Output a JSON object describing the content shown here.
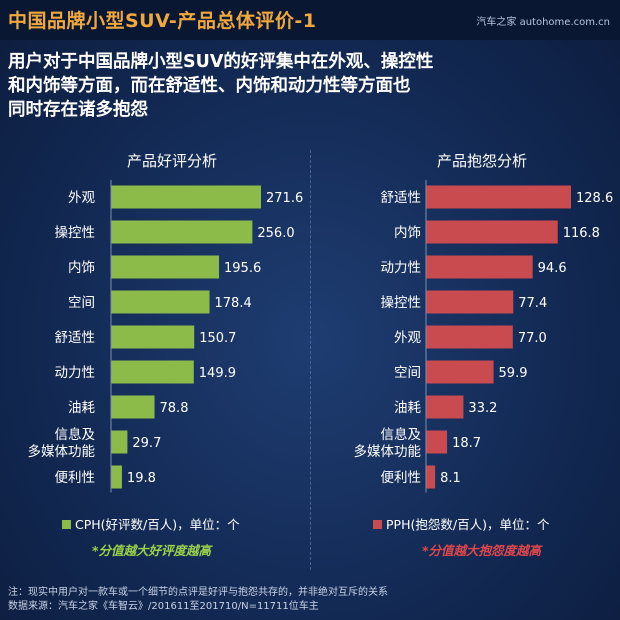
{
  "header": {
    "title": "中国品牌小型SUV-产品总体评价-1",
    "watermark": "汽车之家 autohome.com.cn"
  },
  "subtitle_lines": [
    "用户对于中国品牌小型SUV的好评集中在外观、操控性",
    "和内饰等方面，而在舒适性、内饰和动力性等方面也",
    "同时存在诸多抱怨"
  ],
  "colors": {
    "title": "#f0a83c",
    "good": "#8dbb4a",
    "bad": "#c94a4f",
    "good_note": "#9bd14a",
    "bad_note": "#e0474c"
  },
  "chart_data": [
    {
      "type": "bar",
      "orientation": "horizontal",
      "title": "产品好评分析",
      "categories": [
        "外观",
        "操控性",
        "内饰",
        "空间",
        "舒适性",
        "动力性",
        "油耗",
        "信息及\n多媒体功能",
        "便利性"
      ],
      "series": [
        {
          "name": "CPH(好评数/百人)，单位：个",
          "values": [
            271.6,
            256.0,
            195.6,
            178.4,
            150.7,
            149.9,
            78.8,
            29.7,
            19.8
          ]
        }
      ],
      "value_labels": [
        "271.6",
        "256.0",
        "195.6",
        "178.4",
        "150.7",
        "149.9",
        "78.8",
        "29.7",
        "19.8"
      ],
      "legend": "CPH(好评数/百人)，单位：个",
      "note": "*分值越大好评度越高"
    },
    {
      "type": "bar",
      "orientation": "horizontal",
      "title": "产品抱怨分析",
      "categories": [
        "舒适性",
        "内饰",
        "动力性",
        "操控性",
        "外观",
        "空间",
        "油耗",
        "信息及\n多媒体功能",
        "便利性"
      ],
      "series": [
        {
          "name": "PPH(抱怨数/百人)，单位：个",
          "values": [
            128.6,
            116.8,
            94.6,
            77.4,
            77.0,
            59.9,
            33.2,
            18.7,
            8.1
          ]
        }
      ],
      "value_labels": [
        "128.6",
        "116.8",
        "94.6",
        "77.4",
        "77.0",
        "59.9",
        "33.2",
        "18.7",
        "8.1"
      ],
      "legend": "PPH(抱怨数/百人)，单位：个",
      "note": "*分值越大抱怨度越高"
    }
  ],
  "footer": {
    "line1": "注：现实中用户对一款车或一个细节的点评是好评与抱怨共存的，并非绝对互斥的关系",
    "line2": "数据来源：汽车之家《车智云》/201611至201710/N=11711位车主"
  }
}
